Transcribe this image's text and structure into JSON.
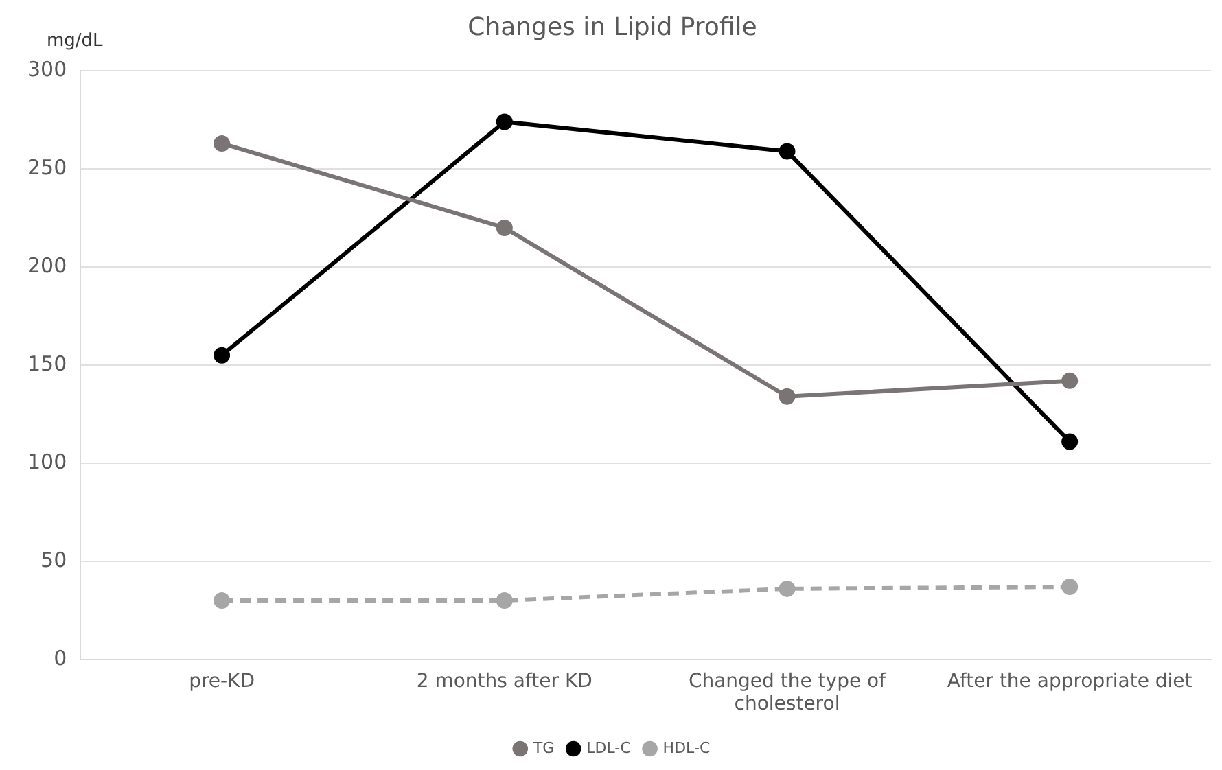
{
  "chart_data": {
    "type": "line",
    "title": "Changes in Lipid Profile",
    "ylabel": "mg/dL",
    "categories": [
      "pre-KD",
      "2 months after KD",
      "Changed the type of cholesterol",
      "After the appropriate diet"
    ],
    "series": [
      {
        "name": "TG",
        "color": "#7a7474",
        "values": [
          263,
          220,
          134,
          142
        ]
      },
      {
        "name": "LDL-C",
        "color": "#000000",
        "values": [
          155,
          274,
          259,
          111
        ]
      },
      {
        "name": "HDL-C",
        "color": "#a6a6a6",
        "values": [
          30,
          30,
          36,
          37
        ],
        "line_style": "dashed"
      }
    ],
    "ylim": [
      0,
      300
    ],
    "yticks": [
      0,
      50,
      100,
      150,
      200,
      250,
      300
    ],
    "grid": "y",
    "legend": "bottom",
    "marker": "circle",
    "line_style": "solid"
  }
}
